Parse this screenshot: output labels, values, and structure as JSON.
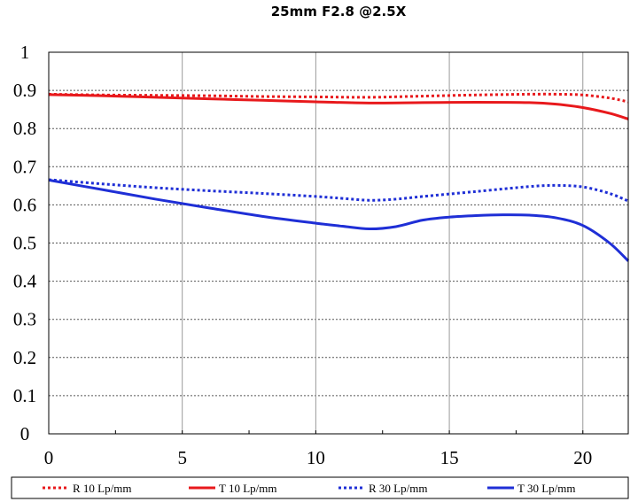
{
  "chart_data": {
    "type": "line",
    "title": "25mm F2.8  @2.5X",
    "xlim": [
      0,
      21.7
    ],
    "ylim": [
      0,
      1
    ],
    "x_ticks": [
      "0",
      "5",
      "10",
      "15",
      "20"
    ],
    "y_ticks": [
      "0",
      "0.1",
      "0.2",
      "0.3",
      "0.4",
      "0.5",
      "0.6",
      "0.7",
      "0.8",
      "0.9",
      "1"
    ],
    "grid": true,
    "legend_position": "bottom",
    "series": [
      {
        "name": "R 10 Lp/mm",
        "color": "#e8191c",
        "dash": "dotted",
        "x": [
          0,
          2,
          4,
          6,
          8,
          10,
          12,
          14,
          16,
          18,
          19,
          20,
          21,
          21.7
        ],
        "values": [
          0.89,
          0.888,
          0.887,
          0.886,
          0.884,
          0.883,
          0.882,
          0.885,
          0.888,
          0.89,
          0.89,
          0.888,
          0.88,
          0.87
        ]
      },
      {
        "name": "T 10 Lp/mm",
        "color": "#e8191c",
        "dash": "solid",
        "x": [
          0,
          2,
          4,
          6,
          8,
          10,
          12,
          14,
          16,
          18,
          19,
          20,
          21,
          21.7
        ],
        "values": [
          0.889,
          0.886,
          0.882,
          0.878,
          0.874,
          0.87,
          0.867,
          0.868,
          0.869,
          0.868,
          0.864,
          0.855,
          0.84,
          0.825
        ]
      },
      {
        "name": "R 30 Lp/mm",
        "color": "#1f2fd6",
        "dash": "dotted",
        "x": [
          0,
          2,
          4,
          6,
          8,
          10,
          11,
          12,
          13,
          14,
          16,
          18,
          19,
          20,
          21,
          21.7
        ],
        "values": [
          0.666,
          0.655,
          0.645,
          0.637,
          0.63,
          0.622,
          0.617,
          0.612,
          0.615,
          0.622,
          0.635,
          0.648,
          0.651,
          0.647,
          0.63,
          0.61
        ]
      },
      {
        "name": "T 30 Lp/mm",
        "color": "#1f2fd6",
        "dash": "solid",
        "x": [
          0,
          2,
          4,
          6,
          8,
          10,
          11,
          12,
          13,
          14,
          15,
          16,
          17,
          18,
          19,
          20,
          21,
          21.7
        ],
        "values": [
          0.665,
          0.64,
          0.615,
          0.592,
          0.57,
          0.552,
          0.544,
          0.537,
          0.543,
          0.56,
          0.568,
          0.572,
          0.574,
          0.573,
          0.566,
          0.546,
          0.5,
          0.453
        ]
      }
    ]
  }
}
